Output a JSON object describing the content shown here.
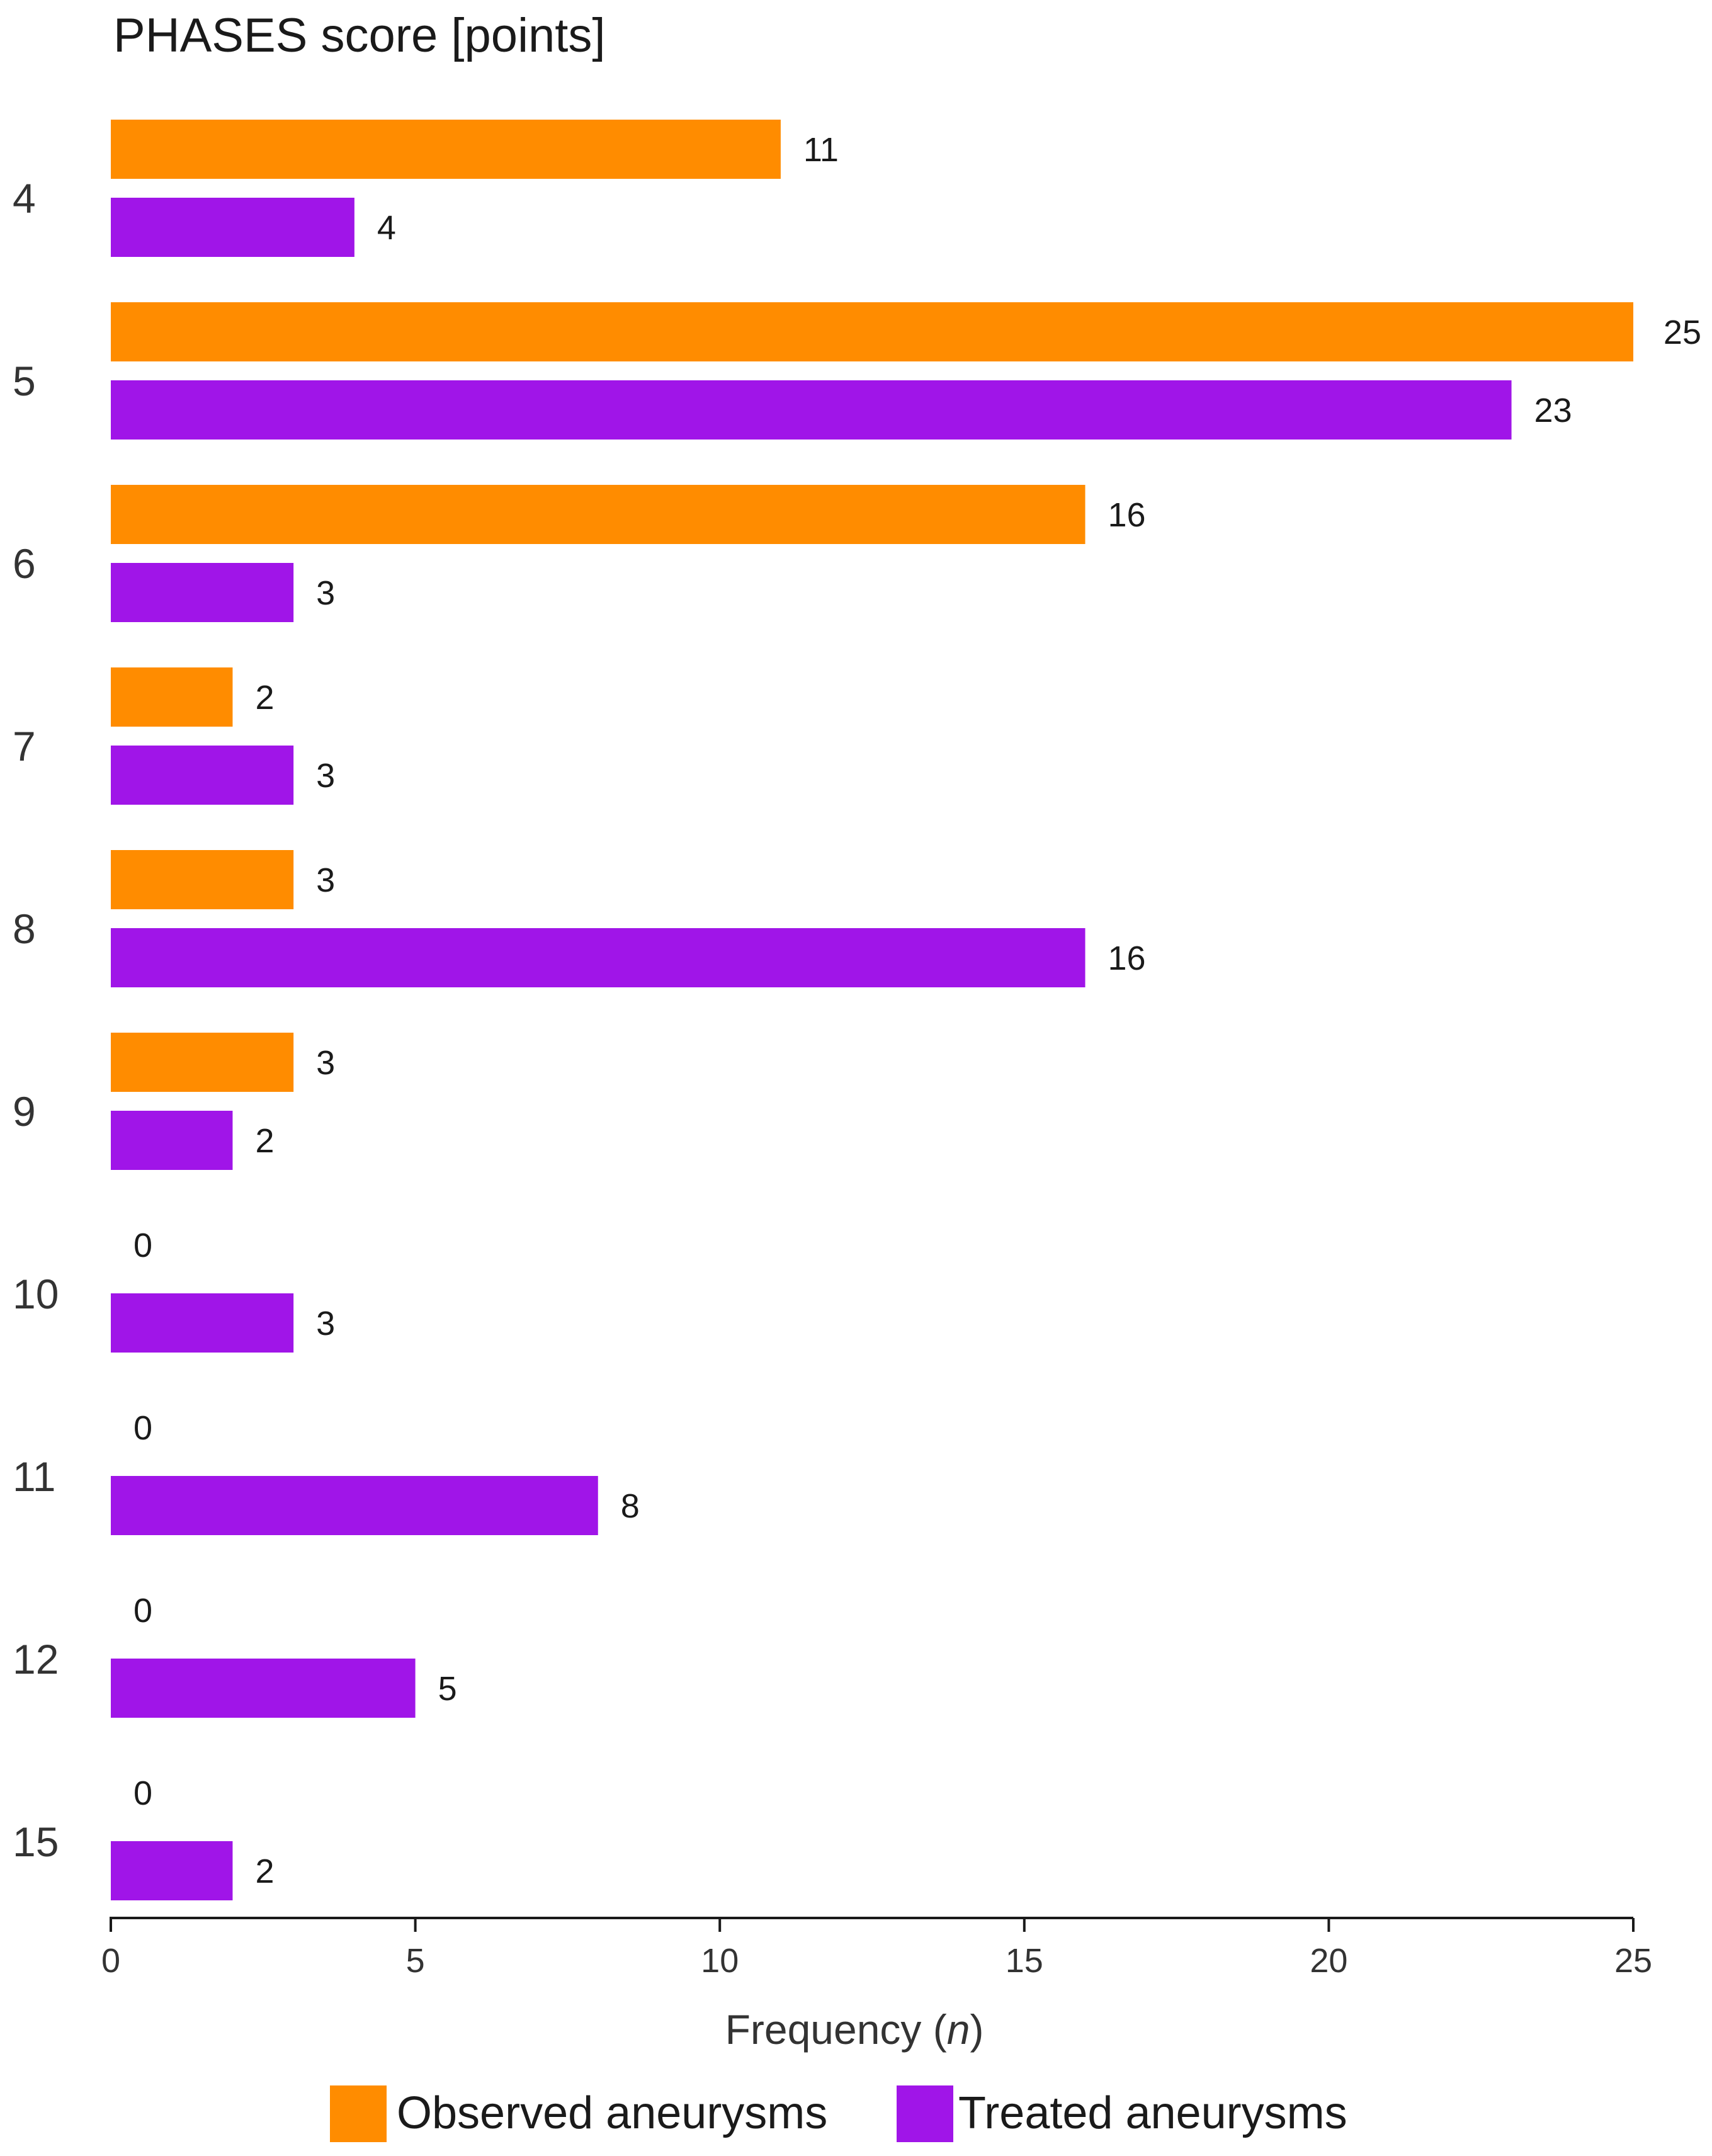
{
  "chart_data": {
    "type": "bar",
    "orientation": "horizontal",
    "title": "PHASES score [points]",
    "xlabel_text": "Frequency (",
    "xlabel_italic": "n",
    "xlabel_close": ")",
    "xlim": [
      0,
      25
    ],
    "xticks": [
      "0",
      "5",
      "10",
      "15",
      "20",
      "25"
    ],
    "categories": [
      "4",
      "5",
      "6",
      "7",
      "8",
      "9",
      "10",
      "11",
      "12",
      "15"
    ],
    "series": [
      {
        "name": "Observed aneurysms",
        "color": "#FF8C00",
        "values": [
          11,
          25,
          16,
          2,
          3,
          3,
          0,
          0,
          0,
          0
        ]
      },
      {
        "name": "Treated aneurysms",
        "color": "#A015E8",
        "values": [
          4,
          23,
          3,
          3,
          16,
          2,
          3,
          8,
          5,
          2
        ]
      }
    ],
    "grid": false,
    "legend": "bottom-center"
  }
}
